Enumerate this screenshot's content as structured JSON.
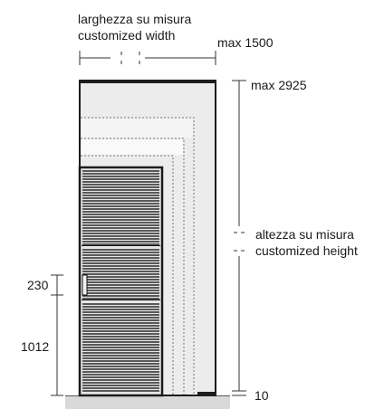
{
  "width_label_it": "larghezza su misura",
  "width_label_en": "customized width",
  "max_width": "max 1500",
  "max_height": "max 2925",
  "height_label_it": "altezza su misura",
  "height_label_en": "customized height",
  "handle_height": "230",
  "handle_position": "1012",
  "floor_clearance": "10",
  "colors": {
    "frame": "#1c1c1c",
    "panel": "#e8e8e8",
    "door": "#2a2a2a",
    "floor": "#d9d9d9",
    "dim_line": "#333333"
  }
}
